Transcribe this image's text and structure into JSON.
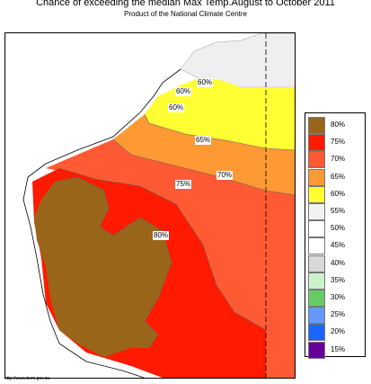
{
  "title": "Chance of exceeding the median Max Temp.August to October 2011",
  "subtitle": "Product of the National Climate Centre",
  "source_url": "http://www.bom.gov.au",
  "legend": [
    {
      "label": "80%",
      "color": "#996619"
    },
    {
      "label": "75%",
      "color": "#ff1a00"
    },
    {
      "label": "70%",
      "color": "#ff5a33"
    },
    {
      "label": "65%",
      "color": "#ff9933"
    },
    {
      "label": "60%",
      "color": "#ffff33"
    },
    {
      "label": "55%",
      "color": "#f2f2f2"
    },
    {
      "label": "50%",
      "color": "#ffffff"
    },
    {
      "label": "45%",
      "color": "#ffffff"
    },
    {
      "label": "40%",
      "color": "#d9d9d9"
    },
    {
      "label": "35%",
      "color": "#ccf2cc"
    },
    {
      "label": "30%",
      "color": "#66cc66"
    },
    {
      "label": "25%",
      "color": "#6699ff"
    },
    {
      "label": "20%",
      "color": "#1a66ff"
    },
    {
      "label": "15%",
      "color": "#660099"
    }
  ],
  "contour_labels": [
    {
      "name": "label-60-north",
      "text": "60%"
    },
    {
      "name": "label-60-west-a",
      "text": "60%"
    },
    {
      "name": "label-60-west-b",
      "text": "60%"
    },
    {
      "name": "label-65",
      "text": "65%"
    },
    {
      "name": "label-70",
      "text": "70%"
    },
    {
      "name": "label-75",
      "text": "75%"
    },
    {
      "name": "label-80",
      "text": "80%"
    }
  ]
}
